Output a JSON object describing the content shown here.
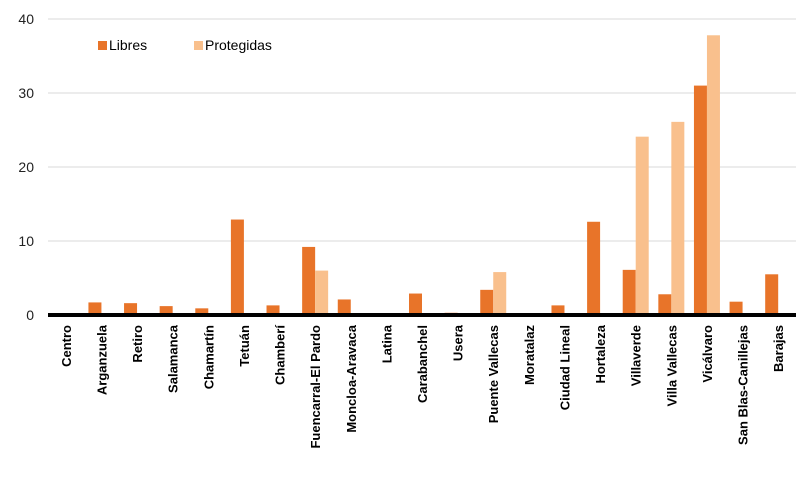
{
  "chart_data": {
    "type": "bar",
    "categories": [
      "Centro",
      "Arganzuela",
      "Retiro",
      "Salamanca",
      "Chamartín",
      "Tetuán",
      "Chamberí",
      "Fuencarral-El Pardo",
      "Moncloa-Aravaca",
      "Latina",
      "Carabanchel",
      "Usera",
      "Puente Vallecas",
      "Moratalaz",
      "Ciudad Lineal",
      "Hortaleza",
      "Villaverde",
      "Villa Vallecas",
      "Vicálvaro",
      "San Blas-Canillejas",
      "Barajas"
    ],
    "series": [
      {
        "name": "Libres",
        "color": "#E87429",
        "values": [
          0.1,
          1.7,
          1.6,
          1.2,
          0.9,
          12.9,
          1.3,
          9.2,
          2.1,
          0.1,
          2.9,
          0.3,
          3.4,
          0.1,
          1.3,
          12.6,
          6.1,
          2.8,
          31.0,
          1.8,
          5.5
        ]
      },
      {
        "name": "Protegidas",
        "color": "#F9C08D",
        "values": [
          0,
          0,
          0,
          0,
          0,
          0,
          0,
          6.0,
          0,
          0,
          0,
          0,
          5.8,
          0,
          0,
          0,
          24.1,
          26.1,
          37.8,
          0,
          0
        ]
      }
    ],
    "yticks": [
      0,
      10,
      20,
      30,
      40
    ],
    "ylim": [
      0,
      40
    ],
    "grid": true,
    "legend_position": "top-left",
    "title": "",
    "xlabel": "",
    "ylabel": ""
  }
}
